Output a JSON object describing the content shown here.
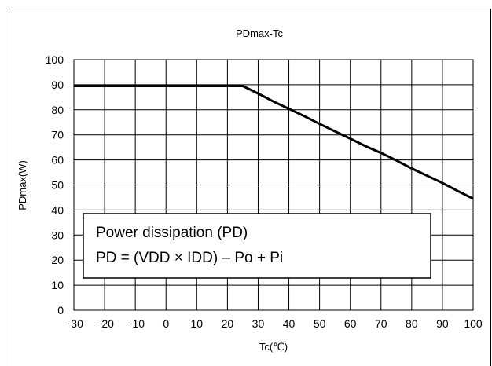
{
  "chart_data": {
    "type": "line",
    "title": "PDmax-Tc",
    "xlabel": "Tc(℃)",
    "ylabel": "PDmax(W)",
    "xlim": [
      -30,
      100
    ],
    "ylim": [
      0,
      100
    ],
    "xticks": [
      -30,
      -20,
      -10,
      0,
      10,
      20,
      30,
      40,
      50,
      60,
      70,
      80,
      90,
      100
    ],
    "yticks": [
      0,
      10,
      20,
      30,
      40,
      50,
      60,
      70,
      80,
      90,
      100
    ],
    "grid": true,
    "series": [
      {
        "x": [
          -30,
          25,
          30,
          35,
          40,
          45,
          50,
          55,
          60,
          65,
          70,
          75,
          80,
          85,
          90,
          95,
          100
        ],
        "y": [
          89.5,
          89.5,
          86.5,
          83.3,
          80.4,
          77.5,
          74.4,
          71.4,
          68.5,
          65.5,
          62.8,
          59.8,
          56.6,
          53.7,
          50.8,
          47.6,
          44.5
        ],
        "color": "#000000"
      }
    ],
    "annotation": {
      "line1": "Power dissipation (PD)",
      "line2": "PD = (VDD × IDD) – Po + Pi"
    }
  }
}
